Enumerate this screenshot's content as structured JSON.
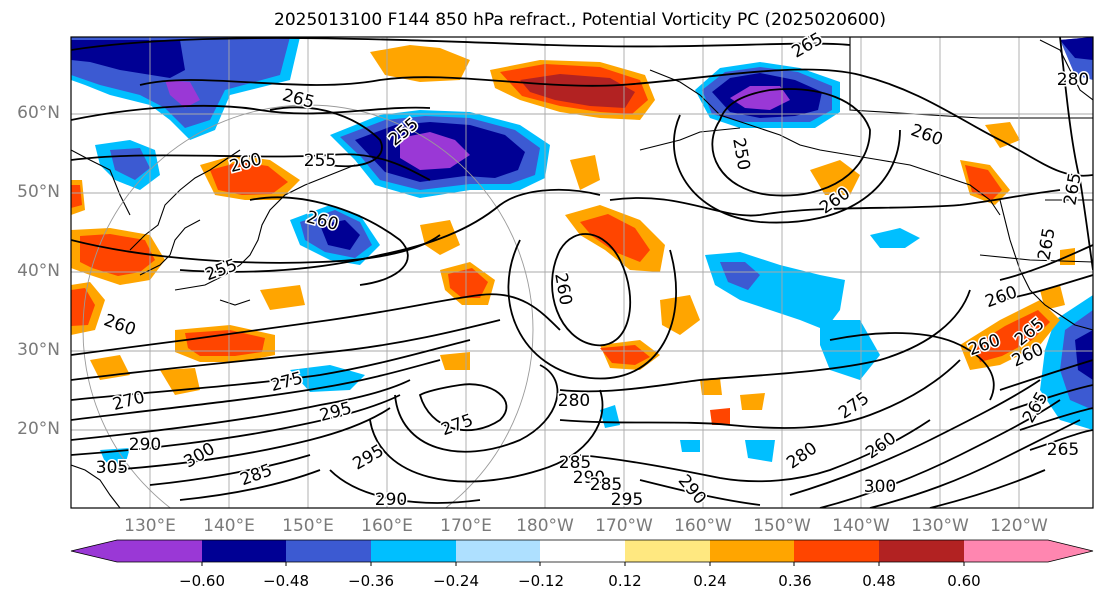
{
  "title": "2025013100 F144 850 hPa refract., Potential Vorticity PC (2025020600)",
  "lat_labels": [
    "60°N",
    "50°N",
    "40°N",
    "30°N",
    "20°N"
  ],
  "lon_labels": [
    "130°E",
    "140°E",
    "150°E",
    "160°E",
    "170°E",
    "180°W",
    "170°W",
    "160°W",
    "150°W",
    "140°W",
    "130°W",
    "120°W"
  ],
  "colorbar": {
    "colors": [
      "#9a38d6",
      "#000094",
      "#3c5ad2",
      "#00bfff",
      "#aee0ff",
      "#ffffff",
      "#ffe880",
      "#ffa500",
      "#ff4500",
      "#b22222",
      "#ff86b0"
    ],
    "tick_labels": [
      "−0.60",
      "−0.48",
      "−0.36",
      "−0.24",
      "−0.12",
      "0.12",
      "0.24",
      "0.36",
      "0.48",
      "0.60"
    ]
  },
  "contour_labels": [
    "265",
    "265",
    "260",
    "260",
    "255",
    "255",
    "250",
    "260",
    "260",
    "255",
    "260",
    "260",
    "260",
    "265",
    "270",
    "275",
    "290",
    "305",
    "300",
    "295",
    "285",
    "295",
    "275",
    "280",
    "285",
    "290",
    "285",
    "295",
    "290",
    "290",
    "280",
    "275",
    "260",
    "300",
    "265",
    "260",
    "265",
    "265",
    "265",
    "280",
    "260"
  ]
}
